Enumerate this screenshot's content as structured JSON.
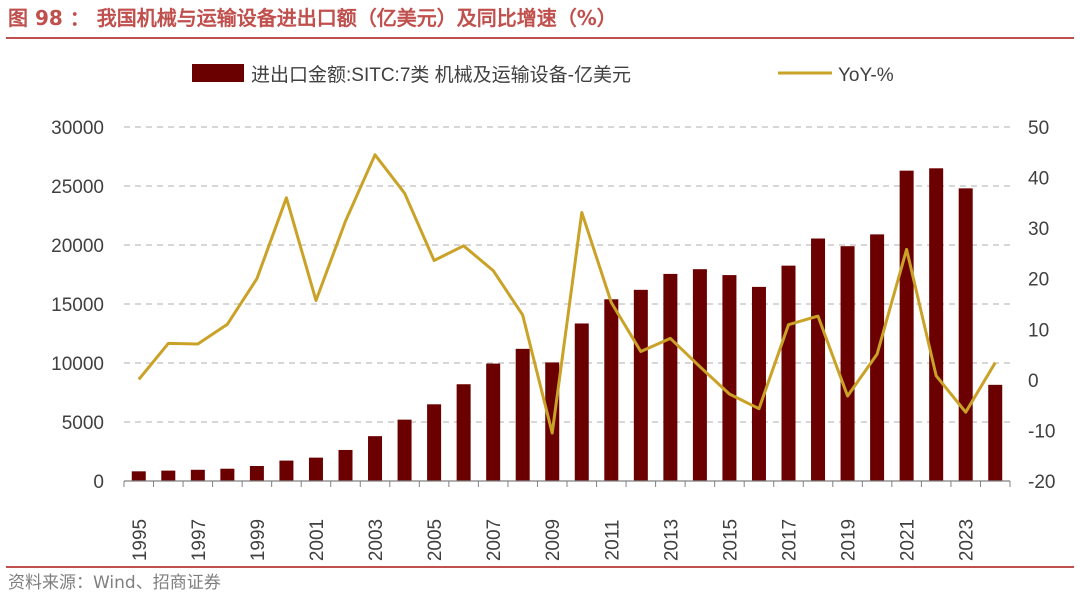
{
  "figure": {
    "title": "图 98 ： 我国机械与运输设备进出口额（亿美元）及同比增速（%）",
    "source": "资料来源：Wind、招商证券"
  },
  "colors": {
    "title": "#C0504D",
    "rule": "#C0504D",
    "bar": "#6B0000",
    "line": "#C9A227",
    "grid": "#BFBFBF",
    "axis_text": "#404040",
    "source_text": "#7F7F7F"
  },
  "chart_data": {
    "type": "bar",
    "title": "",
    "xlabel": "",
    "ylabel": "",
    "legend_position": "top",
    "grid": true,
    "categories": [
      "1995",
      "1996",
      "1997",
      "1998",
      "1999",
      "2000",
      "2001",
      "2002",
      "2003",
      "2004",
      "2005",
      "2006",
      "2007",
      "2008",
      "2009",
      "2010",
      "2011",
      "2012",
      "2013",
      "2014",
      "2015",
      "2016",
      "2017",
      "2018",
      "2019",
      "2020",
      "2021",
      "2022",
      "2023",
      "2024"
    ],
    "x_tick_labels": [
      "1995",
      "",
      "1997",
      "",
      "1999",
      "",
      "2001",
      "",
      "2003",
      "",
      "2005",
      "",
      "2007",
      "",
      "2009",
      "",
      "2011",
      "",
      "2013",
      "",
      "2015",
      "",
      "2017",
      "",
      "2019",
      "",
      "2021",
      "",
      "2023",
      ""
    ],
    "ylim": [
      0,
      30000
    ],
    "y_ticks": [
      "0",
      "5000",
      "10000",
      "15000",
      "20000",
      "25000",
      "30000"
    ],
    "y2lim": [
      -20,
      50
    ],
    "y2_ticks": [
      "-20",
      "-10",
      "0",
      "10",
      "20",
      "30",
      "40",
      "50"
    ],
    "series": [
      {
        "name": "进出口金额:SITC:7类 机械及运输设备-亿美元",
        "type": "bar",
        "axis": "left",
        "values": [
          820,
          880,
          950,
          1040,
          1270,
          1730,
          1980,
          2630,
          3800,
          5200,
          6500,
          8200,
          9950,
          11200,
          10050,
          13350,
          15400,
          16200,
          17550,
          17950,
          17450,
          16450,
          18250,
          20550,
          19900,
          20900,
          26300,
          26500,
          24800,
          8150
        ]
      },
      {
        "name": "YoY-%",
        "type": "line",
        "axis": "right",
        "values": [
          0.1,
          7.2,
          7.1,
          11.0,
          20.0,
          36.0,
          15.7,
          31.4,
          44.5,
          36.9,
          23.6,
          26.5,
          21.6,
          12.8,
          -10.5,
          33.1,
          15.3,
          5.6,
          8.2,
          2.6,
          -2.8,
          -5.7,
          10.9,
          12.6,
          -3.2,
          5.1,
          25.8,
          0.8,
          -6.4,
          3.4
        ]
      }
    ]
  }
}
